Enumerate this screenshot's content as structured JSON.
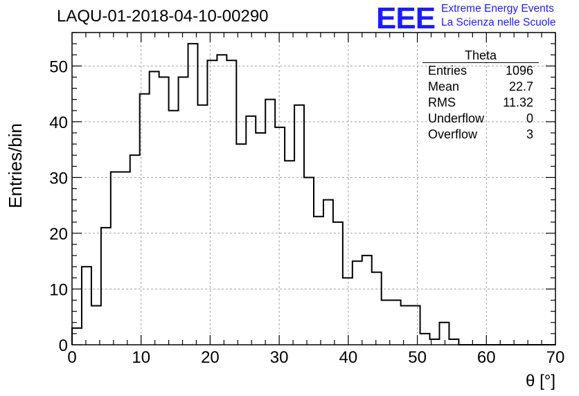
{
  "header": {
    "title": "LAQU-01-2018-04-10-00290",
    "logo_mark": "EEE",
    "logo_line1": "Extreme Energy Events",
    "logo_line2": "La Scienza nelle Scuole"
  },
  "stats_box": {
    "title": "Theta",
    "rows": [
      {
        "label": "Entries",
        "value": "1096"
      },
      {
        "label": "Mean",
        "value": "22.7"
      },
      {
        "label": "RMS",
        "value": "11.32"
      },
      {
        "label": "Underflow",
        "value": "0"
      },
      {
        "label": "Overflow",
        "value": "3"
      }
    ]
  },
  "colors": {
    "line": "#000000",
    "grid": "#a0a0a0",
    "logo": "#1c1cff"
  },
  "chart_data": {
    "type": "bar",
    "title": "LAQU-01-2018-04-10-00290",
    "xlabel": "θ [°]",
    "ylabel": "Entries/bin",
    "xlim": [
      0,
      70
    ],
    "ylim": [
      0,
      56
    ],
    "grid": true,
    "bin_width": 1.4,
    "bin_start": 0,
    "x_ticks": [
      0,
      10,
      20,
      30,
      40,
      50,
      60,
      70
    ],
    "y_ticks": [
      0,
      10,
      20,
      30,
      40,
      50
    ],
    "values": [
      3,
      14,
      7,
      21,
      31,
      31,
      34,
      45,
      49,
      48,
      42,
      48,
      54,
      43,
      51,
      52,
      51,
      36,
      41,
      38,
      44,
      39,
      33,
      43,
      30,
      23,
      26,
      22,
      12,
      15,
      16,
      13,
      8,
      8,
      7,
      7,
      2,
      1,
      4,
      1,
      0,
      0,
      0,
      0,
      0,
      0,
      0,
      0,
      0,
      0
    ]
  }
}
